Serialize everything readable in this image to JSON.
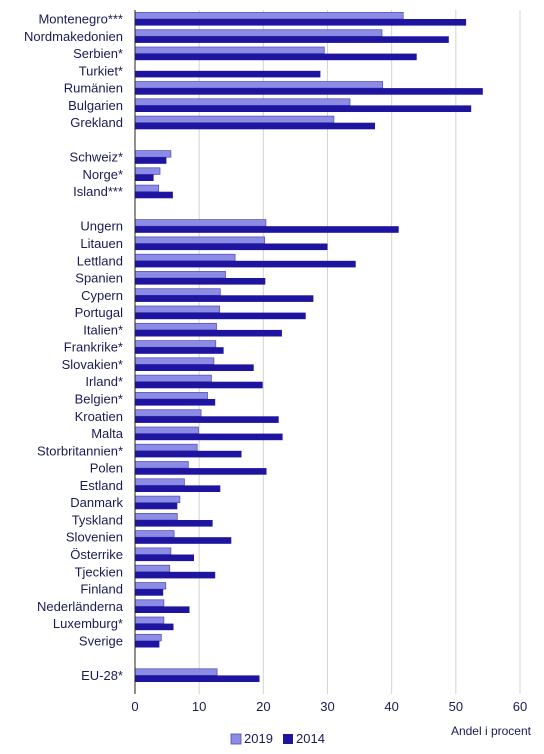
{
  "chart_data": {
    "type": "bar",
    "orientation": "horizontal",
    "xlabel": "Andel i procent",
    "xlim": [
      0,
      60
    ],
    "x_ticks": [
      "0",
      "10",
      "20",
      "30",
      "40",
      "50",
      "60"
    ],
    "grid": "vertical",
    "legend_position": "bottom",
    "categories": [
      "Montenegro***",
      "Nordmakedonien",
      "Serbien*",
      "Turkiet*",
      "Rumänien",
      "Bulgarien",
      "Grekland",
      "Schweiz*",
      "Norge*",
      "Island***",
      "Ungern",
      "Litauen",
      "Lettland",
      "Spanien",
      "Cypern",
      "Portugal",
      "Italien*",
      "Frankrike*",
      "Slovakien*",
      "Irland*",
      "Belgien*",
      "Kroatien",
      "Malta",
      "Storbritannien*",
      "Polen",
      "Estland",
      "Danmark",
      "Tyskland",
      "Slovenien",
      "Österrike",
      "Tjeckien",
      "Finland",
      "Nederländerna",
      "Luxemburg*",
      "Sverige",
      "EU-28*"
    ],
    "series": [
      {
        "name": "2019",
        "color": "#8c8ce6",
        "values": [
          41.8,
          38.5,
          29.5,
          null,
          38.6,
          33.5,
          31.0,
          5.6,
          3.9,
          3.7,
          20.4,
          20.2,
          15.6,
          14.1,
          13.3,
          13.2,
          12.7,
          12.6,
          12.3,
          11.9,
          11.3,
          10.3,
          9.9,
          9.7,
          8.3,
          7.7,
          7.0,
          6.6,
          6.1,
          5.6,
          5.4,
          4.8,
          4.5,
          4.5,
          4.1,
          12.8
        ]
      },
      {
        "name": "2014",
        "color": "#1e14a0",
        "values": [
          51.6,
          48.9,
          43.9,
          28.9,
          54.2,
          52.4,
          37.4,
          4.9,
          2.9,
          5.9,
          41.1,
          30.0,
          34.4,
          20.3,
          27.8,
          26.6,
          22.9,
          13.8,
          18.5,
          19.9,
          12.5,
          22.4,
          23.0,
          16.6,
          20.5,
          13.3,
          6.6,
          12.1,
          15.0,
          9.2,
          12.5,
          4.4,
          8.5,
          6.0,
          3.8,
          19.4
        ]
      }
    ]
  }
}
